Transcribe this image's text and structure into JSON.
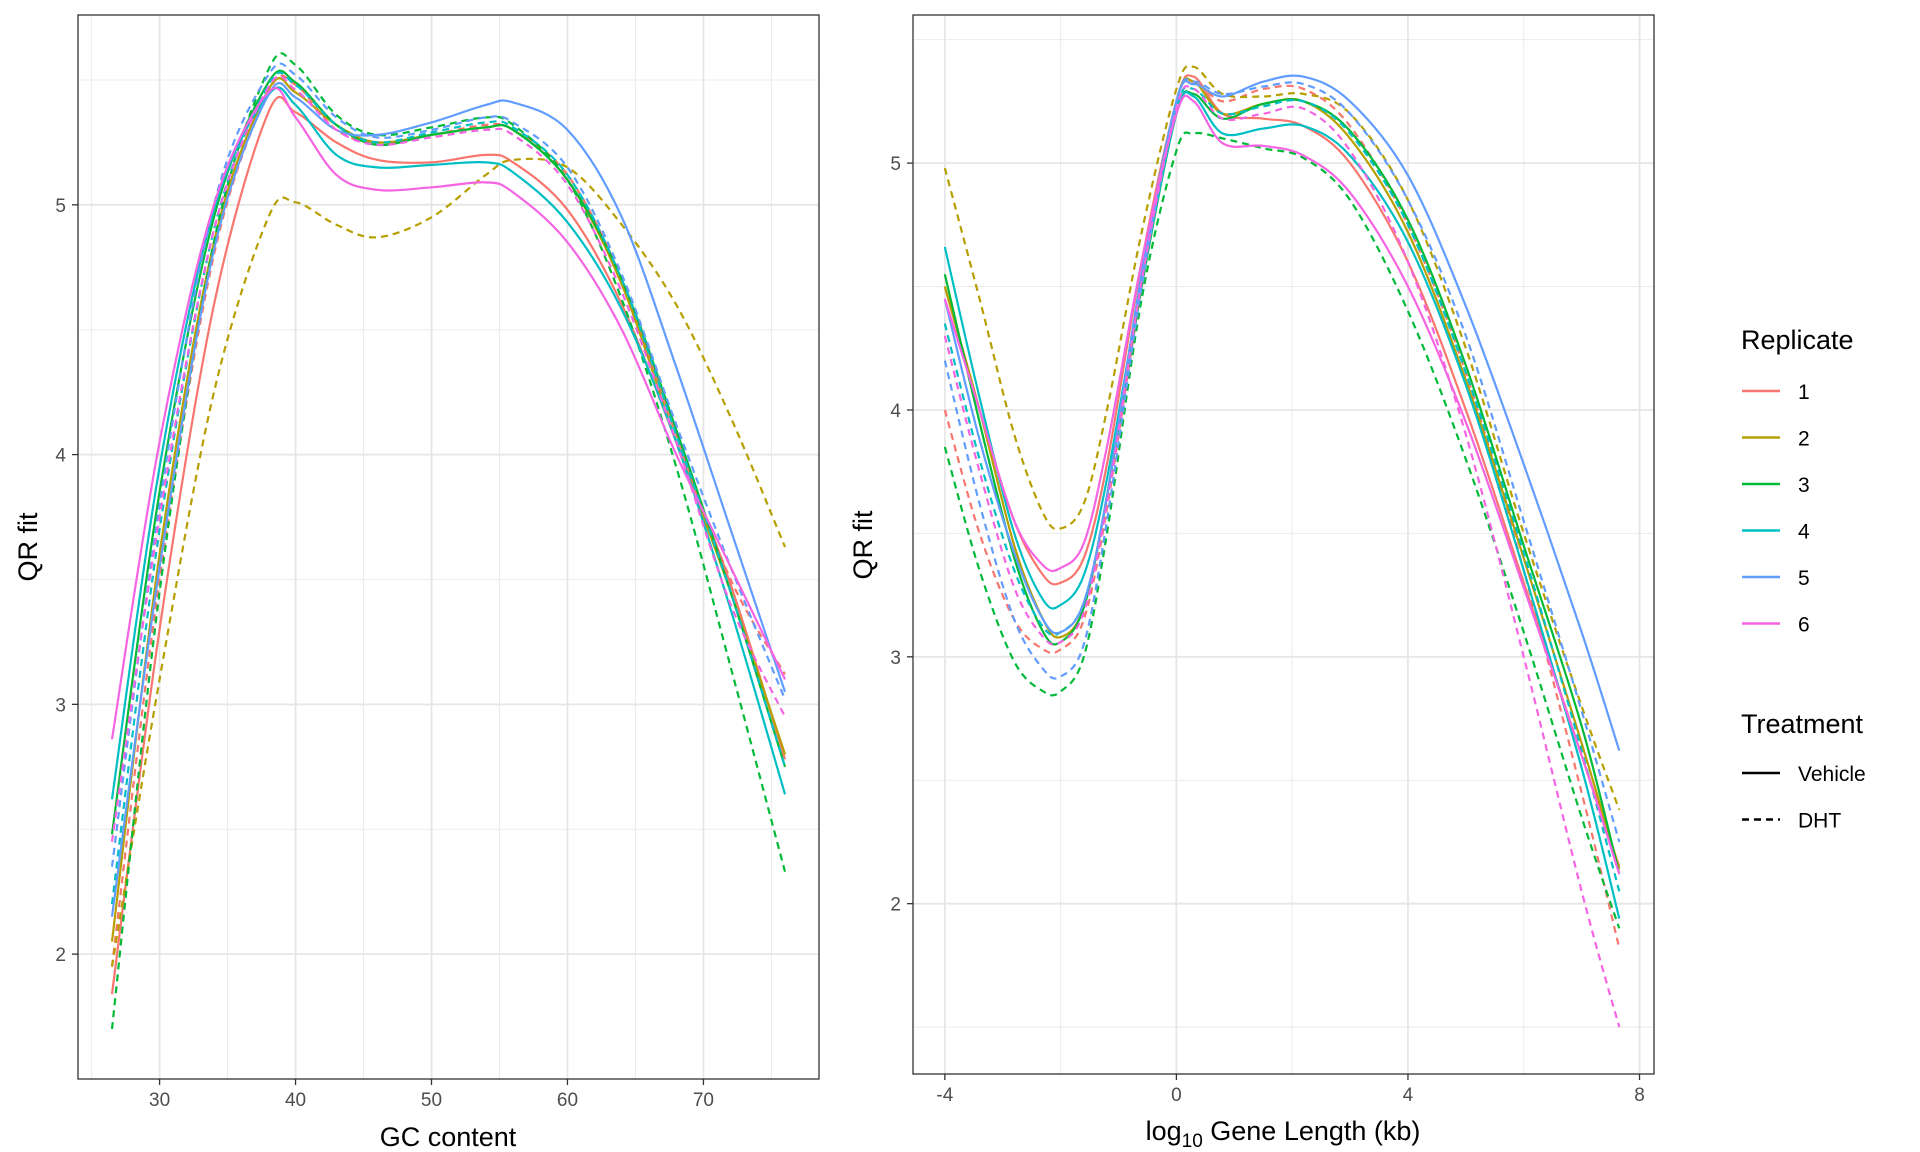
{
  "chart_data": [
    {
      "type": "line",
      "id": "gc",
      "xlabel": "GC content",
      "ylabel": "QR fit",
      "xlim": [
        24,
        78.5
      ],
      "ylim": [
        1.5,
        5.76
      ],
      "xticks": [
        30,
        40,
        50,
        60,
        70
      ],
      "yticks": [
        2,
        3,
        4,
        5
      ],
      "grid": true,
      "series": [
        {
          "replicate": "1",
          "treatment": "Vehicle",
          "x": [
            26.5,
            30,
            34,
            38,
            40,
            43,
            46,
            50,
            54,
            56,
            60,
            64,
            68,
            72,
            76
          ],
          "y": [
            1.84,
            3.3,
            4.6,
            5.37,
            5.37,
            5.25,
            5.18,
            5.17,
            5.2,
            5.17,
            4.98,
            4.6,
            4.05,
            3.48,
            2.78
          ]
        },
        {
          "replicate": "1",
          "treatment": "DHT",
          "x": [
            26.5,
            30,
            34,
            38,
            40,
            43,
            46,
            50,
            54,
            56,
            60,
            64,
            68,
            72,
            76
          ],
          "y": [
            1.95,
            3.5,
            4.8,
            5.45,
            5.48,
            5.3,
            5.25,
            5.28,
            5.32,
            5.3,
            5.12,
            4.7,
            4.08,
            3.5,
            3.12
          ]
        },
        {
          "replicate": "2",
          "treatment": "Vehicle",
          "x": [
            26.5,
            30,
            34,
            38,
            40,
            43,
            46,
            50,
            54,
            56,
            60,
            64,
            68,
            72,
            76
          ],
          "y": [
            2.05,
            3.6,
            4.85,
            5.46,
            5.45,
            5.32,
            5.25,
            5.28,
            5.31,
            5.3,
            5.1,
            4.68,
            4.05,
            3.45,
            2.8
          ]
        },
        {
          "replicate": "2",
          "treatment": "DHT",
          "x": [
            26.5,
            30,
            34,
            38,
            40,
            43,
            46,
            50,
            54,
            56,
            60,
            64,
            68,
            72,
            76
          ],
          "y": [
            1.95,
            3.1,
            4.25,
            4.95,
            5.01,
            4.92,
            4.87,
            4.95,
            5.12,
            5.18,
            5.15,
            4.92,
            4.6,
            4.15,
            3.63
          ]
        },
        {
          "replicate": "3",
          "treatment": "Vehicle",
          "x": [
            26.5,
            30,
            34,
            38,
            40,
            43,
            46,
            50,
            54,
            56,
            60,
            64,
            68,
            72,
            76
          ],
          "y": [
            2.48,
            3.85,
            4.95,
            5.49,
            5.49,
            5.32,
            5.24,
            5.28,
            5.31,
            5.3,
            5.1,
            4.7,
            4.1,
            3.45,
            2.75
          ]
        },
        {
          "replicate": "3",
          "treatment": "DHT",
          "x": [
            26.5,
            30,
            34,
            38,
            40,
            43,
            46,
            50,
            54,
            56,
            60,
            64,
            68,
            72,
            76
          ],
          "y": [
            1.7,
            3.45,
            4.85,
            5.54,
            5.56,
            5.36,
            5.28,
            5.31,
            5.35,
            5.32,
            5.1,
            4.62,
            3.95,
            3.15,
            2.33
          ]
        },
        {
          "replicate": "4",
          "treatment": "Vehicle",
          "x": [
            26.5,
            30,
            34,
            38,
            40,
            43,
            46,
            50,
            54,
            56,
            60,
            64,
            68,
            72,
            76
          ],
          "y": [
            2.62,
            3.95,
            4.98,
            5.44,
            5.4,
            5.2,
            5.15,
            5.16,
            5.17,
            5.13,
            4.93,
            4.58,
            4.05,
            3.38,
            2.64
          ]
        },
        {
          "replicate": "4",
          "treatment": "DHT",
          "x": [
            26.5,
            30,
            34,
            38,
            40,
            43,
            46,
            50,
            54,
            56,
            60,
            64,
            68,
            72,
            76
          ],
          "y": [
            2.2,
            3.7,
            4.9,
            5.48,
            5.48,
            5.32,
            5.25,
            5.29,
            5.33,
            5.31,
            5.12,
            4.7,
            4.08,
            3.45,
            2.75
          ]
        },
        {
          "replicate": "5",
          "treatment": "Vehicle",
          "x": [
            26.5,
            30,
            34,
            38,
            40,
            43,
            46,
            50,
            54,
            56,
            60,
            64,
            68,
            72,
            76
          ],
          "y": [
            2.15,
            3.55,
            4.82,
            5.44,
            5.43,
            5.3,
            5.28,
            5.33,
            5.4,
            5.41,
            5.3,
            4.95,
            4.35,
            3.7,
            3.05
          ]
        },
        {
          "replicate": "5",
          "treatment": "DHT",
          "x": [
            26.5,
            30,
            34,
            38,
            40,
            43,
            46,
            50,
            54,
            56,
            60,
            64,
            68,
            72,
            76
          ],
          "y": [
            2.35,
            3.8,
            5.0,
            5.52,
            5.52,
            5.35,
            5.27,
            5.3,
            5.35,
            5.33,
            5.15,
            4.72,
            4.12,
            3.55,
            3.02
          ]
        },
        {
          "replicate": "6",
          "treatment": "Vehicle",
          "x": [
            26.5,
            30,
            34,
            38,
            40,
            43,
            46,
            50,
            54,
            56,
            60,
            64,
            68,
            72,
            76
          ],
          "y": [
            2.86,
            4.05,
            5.0,
            5.45,
            5.35,
            5.12,
            5.06,
            5.07,
            5.09,
            5.05,
            4.85,
            4.5,
            4.0,
            3.55,
            3.1
          ]
        },
        {
          "replicate": "6",
          "treatment": "DHT",
          "x": [
            26.5,
            30,
            34,
            38,
            40,
            43,
            46,
            50,
            54,
            56,
            60,
            64,
            68,
            72,
            76
          ],
          "y": [
            2.45,
            3.75,
            4.9,
            5.47,
            5.46,
            5.3,
            5.24,
            5.27,
            5.3,
            5.28,
            5.08,
            4.65,
            4.05,
            3.4,
            2.95
          ]
        }
      ]
    },
    {
      "type": "line",
      "id": "length",
      "xlabel_main": "log",
      "xlabel_sub": "10",
      "xlabel_rest": " Gene Length (kb)",
      "ylabel": "QR fit",
      "xlim": [
        -4.55,
        8.25
      ],
      "ylim": [
        1.31,
        5.6
      ],
      "xticks": [
        -4,
        0,
        4,
        8
      ],
      "yticks": [
        2,
        3,
        4,
        5
      ],
      "grid": true,
      "series": [
        {
          "replicate": "1",
          "treatment": "Vehicle",
          "x": [
            -4,
            -3.4,
            -2.8,
            -2.3,
            -2.0,
            -1.6,
            -1.2,
            -0.6,
            0,
            0.3,
            0.8,
            1.5,
            2.2,
            3,
            4,
            5,
            6,
            7,
            7.65
          ],
          "y": [
            4.5,
            4.0,
            3.55,
            3.33,
            3.3,
            3.4,
            3.78,
            4.6,
            5.25,
            5.35,
            5.2,
            5.18,
            5.15,
            5.0,
            4.6,
            4.0,
            3.3,
            2.6,
            2.15
          ]
        },
        {
          "replicate": "1",
          "treatment": "DHT",
          "x": [
            -4,
            -3.4,
            -2.8,
            -2.3,
            -2.0,
            -1.6,
            -1.2,
            -0.6,
            0,
            0.3,
            0.8,
            1.5,
            2.2,
            3,
            4,
            5,
            6,
            7,
            7.65
          ],
          "y": [
            4.0,
            3.5,
            3.15,
            3.03,
            3.03,
            3.15,
            3.6,
            4.5,
            5.25,
            5.33,
            5.25,
            5.3,
            5.3,
            5.15,
            4.75,
            4.15,
            3.35,
            2.45,
            1.82
          ]
        },
        {
          "replicate": "2",
          "treatment": "Vehicle",
          "x": [
            -4,
            -3.4,
            -2.8,
            -2.3,
            -2.0,
            -1.6,
            -1.2,
            -0.6,
            0,
            0.3,
            0.8,
            1.5,
            2.2,
            3,
            4,
            5,
            6,
            7,
            7.65
          ],
          "y": [
            4.5,
            4.0,
            3.45,
            3.15,
            3.08,
            3.2,
            3.65,
            4.55,
            5.25,
            5.33,
            5.2,
            5.24,
            5.25,
            5.1,
            4.72,
            4.12,
            3.4,
            2.65,
            2.14
          ]
        },
        {
          "replicate": "2",
          "treatment": "DHT",
          "x": [
            -4,
            -3.4,
            -2.8,
            -2.3,
            -2.0,
            -1.6,
            -1.2,
            -0.6,
            0,
            0.3,
            0.8,
            1.5,
            2.2,
            3,
            4,
            5,
            6,
            7,
            7.65
          ],
          "y": [
            4.98,
            4.45,
            3.9,
            3.58,
            3.52,
            3.62,
            4.0,
            4.72,
            5.3,
            5.39,
            5.28,
            5.27,
            5.28,
            5.2,
            4.85,
            4.25,
            3.5,
            2.8,
            2.38
          ]
        },
        {
          "replicate": "3",
          "treatment": "Vehicle",
          "x": [
            -4,
            -3.4,
            -2.8,
            -2.3,
            -2.0,
            -1.6,
            -1.2,
            -0.6,
            0,
            0.3,
            0.8,
            1.5,
            2.2,
            3,
            4,
            5,
            6,
            7,
            7.65
          ],
          "y": [
            4.55,
            3.95,
            3.4,
            3.1,
            3.06,
            3.2,
            3.65,
            4.5,
            5.2,
            5.28,
            5.18,
            5.24,
            5.25,
            5.13,
            4.77,
            4.18,
            3.45,
            2.72,
            2.12
          ]
        },
        {
          "replicate": "3",
          "treatment": "DHT",
          "x": [
            -4,
            -3.4,
            -2.8,
            -2.3,
            -2.0,
            -1.6,
            -1.2,
            -0.6,
            0,
            0.3,
            0.8,
            1.5,
            2.2,
            3,
            4,
            5,
            6,
            7,
            7.65
          ],
          "y": [
            3.85,
            3.35,
            2.98,
            2.86,
            2.86,
            3.0,
            3.5,
            4.45,
            5.05,
            5.12,
            5.1,
            5.06,
            5.02,
            4.85,
            4.4,
            3.8,
            3.1,
            2.35,
            1.9
          ]
        },
        {
          "replicate": "4",
          "treatment": "Vehicle",
          "x": [
            -4,
            -3.4,
            -2.8,
            -2.3,
            -2.0,
            -1.6,
            -1.2,
            -0.6,
            0,
            0.3,
            0.8,
            1.5,
            2.2,
            3,
            4,
            5,
            6,
            7,
            7.65
          ],
          "y": [
            4.66,
            4.05,
            3.5,
            3.23,
            3.21,
            3.33,
            3.72,
            4.52,
            5.2,
            5.27,
            5.12,
            5.14,
            5.15,
            5.03,
            4.68,
            4.1,
            3.35,
            2.55,
            1.94
          ]
        },
        {
          "replicate": "4",
          "treatment": "DHT",
          "x": [
            -4,
            -3.4,
            -2.8,
            -2.3,
            -2.0,
            -1.6,
            -1.2,
            -0.6,
            0,
            0.3,
            0.8,
            1.5,
            2.2,
            3,
            4,
            5,
            6,
            7,
            7.65
          ],
          "y": [
            4.35,
            3.8,
            3.35,
            3.12,
            3.1,
            3.22,
            3.65,
            4.55,
            5.22,
            5.3,
            5.2,
            5.23,
            5.25,
            5.12,
            4.75,
            4.15,
            3.42,
            2.62,
            2.05
          ]
        },
        {
          "replicate": "5",
          "treatment": "Vehicle",
          "x": [
            -4,
            -3.4,
            -2.8,
            -2.3,
            -2.0,
            -1.6,
            -1.2,
            -0.6,
            0,
            0.3,
            0.8,
            1.5,
            2.2,
            3,
            4,
            5,
            6,
            7,
            7.65
          ],
          "y": [
            4.45,
            3.88,
            3.42,
            3.15,
            3.1,
            3.22,
            3.65,
            4.55,
            5.25,
            5.32,
            5.27,
            5.33,
            5.35,
            5.25,
            4.95,
            4.42,
            3.78,
            3.1,
            2.62
          ]
        },
        {
          "replicate": "5",
          "treatment": "DHT",
          "x": [
            -4,
            -3.4,
            -2.8,
            -2.3,
            -2.0,
            -1.6,
            -1.2,
            -0.6,
            0,
            0.3,
            0.8,
            1.5,
            2.2,
            3,
            4,
            5,
            6,
            7,
            7.65
          ],
          "y": [
            4.2,
            3.62,
            3.15,
            2.95,
            2.92,
            3.05,
            3.55,
            4.5,
            5.25,
            5.33,
            5.28,
            5.31,
            5.32,
            5.2,
            4.85,
            4.3,
            3.55,
            2.78,
            2.25
          ]
        },
        {
          "replicate": "6",
          "treatment": "Vehicle",
          "x": [
            -4,
            -3.4,
            -2.8,
            -2.3,
            -2.0,
            -1.6,
            -1.2,
            -0.6,
            0,
            0.3,
            0.8,
            1.5,
            2.2,
            3,
            4,
            5,
            6,
            7,
            7.65
          ],
          "y": [
            4.45,
            4.0,
            3.55,
            3.37,
            3.36,
            3.46,
            3.85,
            4.6,
            5.2,
            5.25,
            5.08,
            5.07,
            5.03,
            4.88,
            4.5,
            3.95,
            3.28,
            2.6,
            2.12
          ]
        },
        {
          "replicate": "6",
          "treatment": "DHT",
          "x": [
            -4,
            -3.4,
            -2.8,
            -2.3,
            -2.0,
            -1.6,
            -1.2,
            -0.6,
            0,
            0.3,
            0.8,
            1.5,
            2.2,
            3,
            4,
            5,
            6,
            7,
            7.65
          ],
          "y": [
            4.3,
            3.75,
            3.28,
            3.08,
            3.06,
            3.18,
            3.62,
            4.52,
            5.22,
            5.3,
            5.18,
            5.2,
            5.22,
            5.05,
            4.6,
            3.9,
            3.0,
            2.05,
            1.5
          ]
        }
      ]
    }
  ],
  "legend": {
    "replicate_title": "Replicate",
    "replicates": [
      {
        "label": "1",
        "color": "#F8766D"
      },
      {
        "label": "2",
        "color": "#B79F00"
      },
      {
        "label": "3",
        "color": "#00BA38"
      },
      {
        "label": "4",
        "color": "#00BFC4"
      },
      {
        "label": "5",
        "color": "#619CFF"
      },
      {
        "label": "6",
        "color": "#F564E3"
      }
    ],
    "treatment_title": "Treatment",
    "treatments": [
      {
        "label": "Vehicle",
        "linetype": "solid"
      },
      {
        "label": "DHT",
        "linetype": "dashed"
      }
    ]
  }
}
